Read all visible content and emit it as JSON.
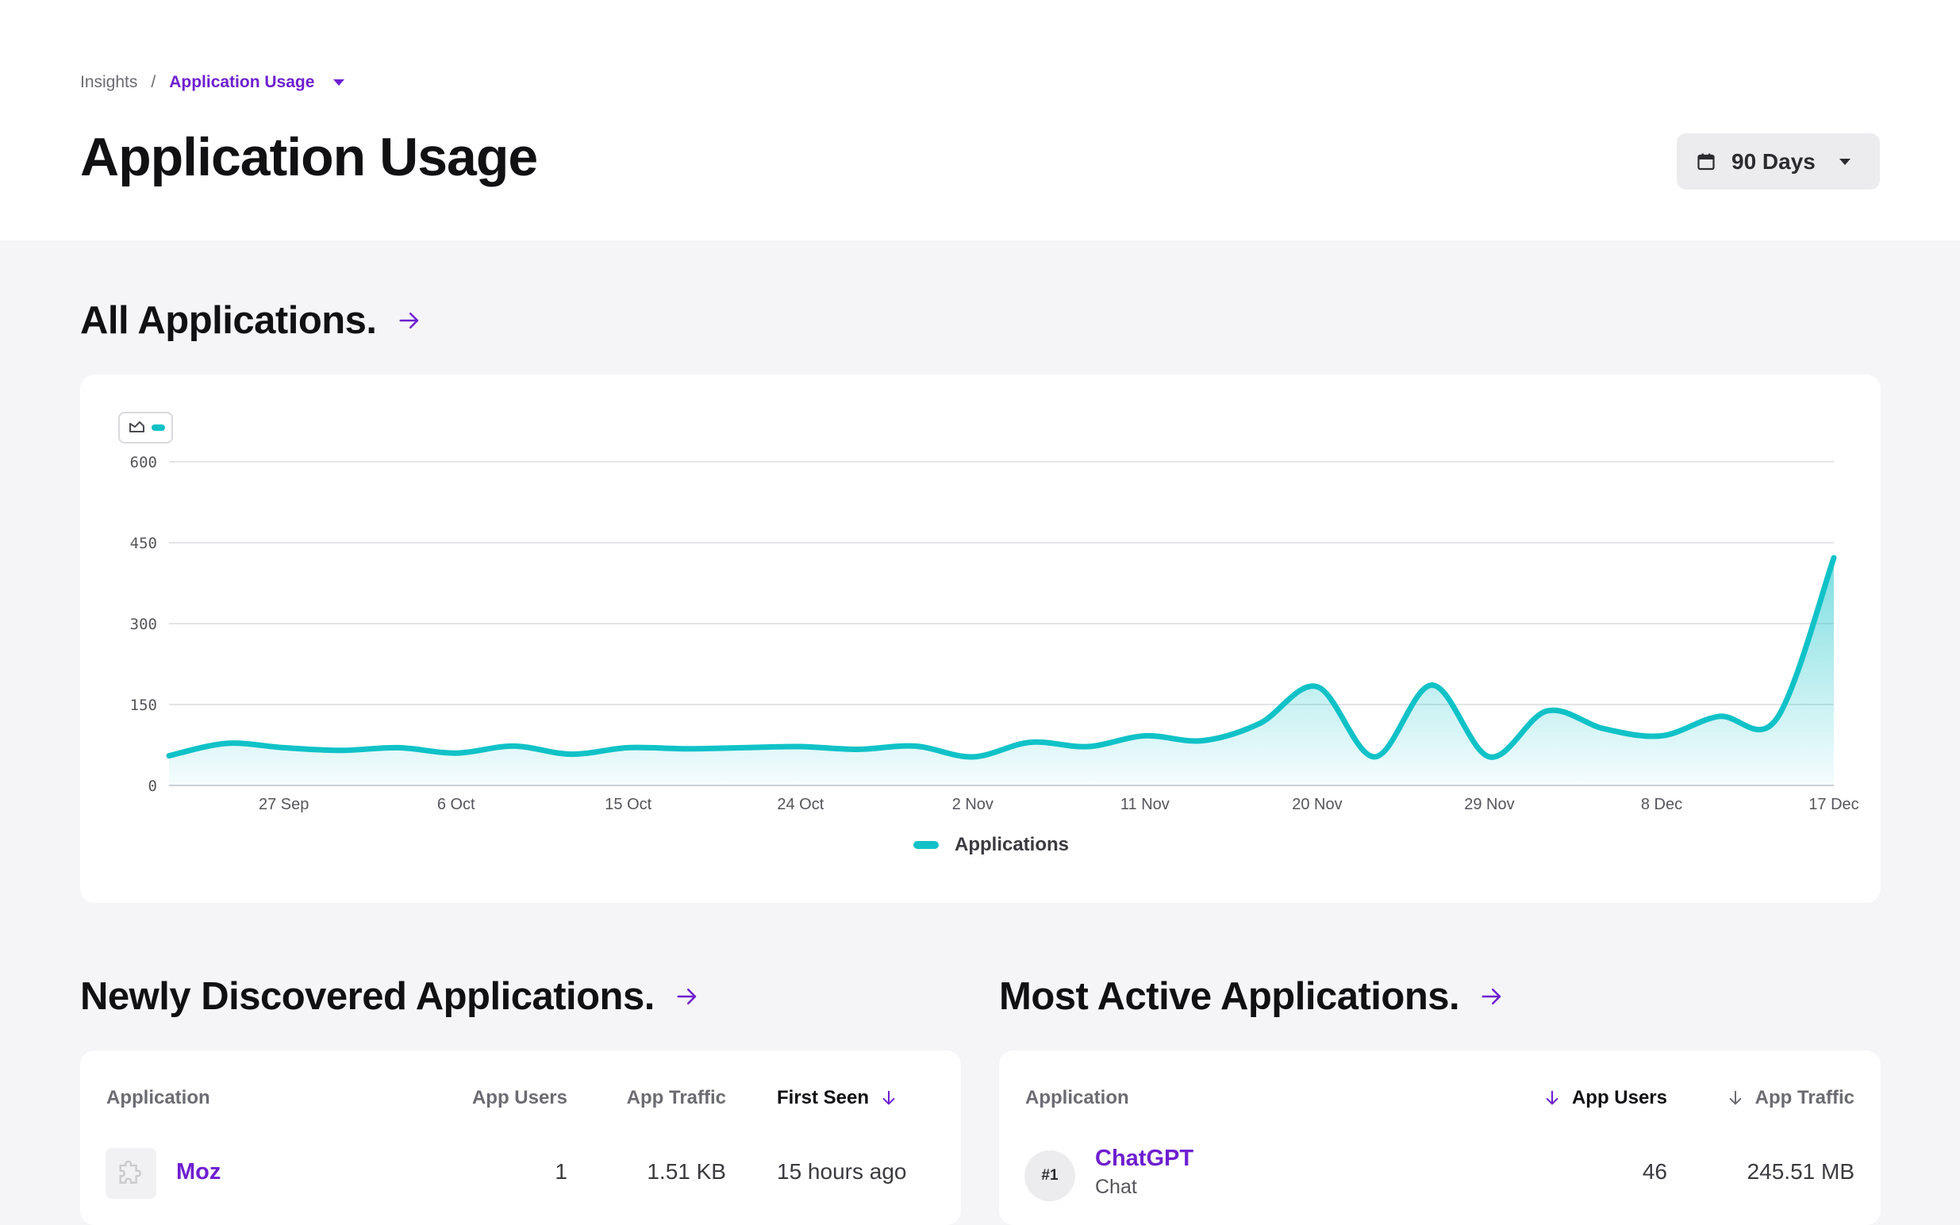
{
  "breadcrumb": {
    "root": "Insights",
    "separator": "/",
    "current": "Application Usage"
  },
  "page_title": "Application Usage",
  "date_range": {
    "label": "90 Days"
  },
  "sections": {
    "all_apps": "All Applications.",
    "newly_discovered": "Newly Discovered Applications.",
    "most_active": "Most Active Applications."
  },
  "chart_data": {
    "type": "area",
    "title": "",
    "xlabel": "",
    "ylabel": "",
    "ylim": [
      0,
      600
    ],
    "yticks": [
      "0",
      "150",
      "300",
      "450",
      "600"
    ],
    "xticks": [
      "27 Sep",
      "6 Oct",
      "15 Oct",
      "24 Oct",
      "2 Nov",
      "11 Nov",
      "20 Nov",
      "29 Nov",
      "8 Dec",
      "17 Dec"
    ],
    "grid": true,
    "legend_position": "bottom",
    "series": [
      {
        "name": "Applications",
        "color": "#10c2c7",
        "x": [
          "21 Sep",
          "24 Sep",
          "27 Sep",
          "30 Sep",
          "3 Oct",
          "6 Oct",
          "9 Oct",
          "12 Oct",
          "15 Oct",
          "18 Oct",
          "21 Oct",
          "24 Oct",
          "27 Oct",
          "30 Oct",
          "2 Nov",
          "5 Nov",
          "8 Nov",
          "11 Nov",
          "14 Nov",
          "17 Nov",
          "20 Nov",
          "23 Nov",
          "26 Nov",
          "29 Nov",
          "2 Dec",
          "5 Dec",
          "8 Dec",
          "11 Dec",
          "14 Dec",
          "17 Dec"
        ],
        "values": [
          55,
          78,
          70,
          65,
          70,
          60,
          73,
          58,
          70,
          68,
          70,
          72,
          67,
          73,
          53,
          80,
          72,
          92,
          83,
          115,
          183,
          53,
          186,
          53,
          138,
          105,
          92,
          128,
          123,
          422
        ]
      }
    ]
  },
  "newly_discovered": {
    "columns": {
      "application": "Application",
      "users": "App Users",
      "traffic": "App Traffic",
      "first_seen": "First Seen"
    },
    "rows": [
      {
        "name": "Moz",
        "users": "1",
        "traffic": "1.51 KB",
        "first_seen": "15 hours ago",
        "icon": "puzzle-icon"
      }
    ]
  },
  "most_active": {
    "columns": {
      "application": "Application",
      "users": "App Users",
      "traffic": "App Traffic"
    },
    "rows": [
      {
        "rank": "#1",
        "name": "ChatGPT",
        "category": "Chat",
        "users": "46",
        "traffic": "245.51 MB"
      }
    ]
  }
}
